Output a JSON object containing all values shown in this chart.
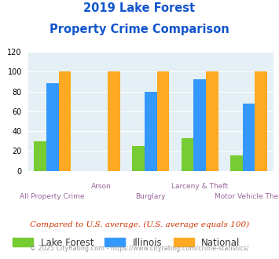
{
  "title_line1": "2019 Lake Forest",
  "title_line2": "Property Crime Comparison",
  "categories": [
    "All Property Crime",
    "Arson",
    "Burglary",
    "Larceny & Theft",
    "Motor Vehicle Theft"
  ],
  "lake_forest": [
    30,
    0,
    25,
    33,
    16
  ],
  "illinois": [
    88,
    0,
    80,
    92,
    68
  ],
  "national": [
    100,
    100,
    100,
    100,
    100
  ],
  "bar_colors": {
    "lake_forest": "#77cc33",
    "illinois": "#3399ff",
    "national": "#ffaa22"
  },
  "ylim": [
    0,
    120
  ],
  "yticks": [
    0,
    20,
    40,
    60,
    80,
    100,
    120
  ],
  "legend_labels": [
    "Lake Forest",
    "Illinois",
    "National"
  ],
  "footnote1": "Compared to U.S. average. (U.S. average equals 100)",
  "footnote2": "© 2025 CityRating.com - https://www.cityrating.com/crime-statistics/",
  "bg_color": "#e4f0f5",
  "title_color": "#1155cc",
  "xlabel_color": "#996699",
  "footnote1_color": "#cc3300",
  "footnote2_color": "#999999"
}
